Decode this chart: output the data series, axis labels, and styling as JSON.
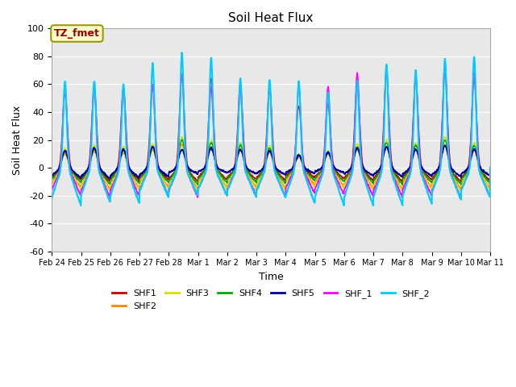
{
  "title": "Soil Heat Flux",
  "ylabel": "Soil Heat Flux",
  "xlabel": "Time",
  "ylim": [
    -60,
    100
  ],
  "series_names": [
    "SHF1",
    "SHF2",
    "SHF3",
    "SHF4",
    "SHF5",
    "SHF_1",
    "SHF_2"
  ],
  "series_colors": [
    "#cc0000",
    "#ff8800",
    "#dddd00",
    "#00aa00",
    "#000099",
    "#ff00ff",
    "#00ccff"
  ],
  "series_lw": [
    1.0,
    1.0,
    1.0,
    1.0,
    1.2,
    1.2,
    1.5
  ],
  "annotation_text": "TZ_fmet",
  "annotation_bg": "#ffffcc",
  "annotation_border": "#999900",
  "annotation_text_color": "#990000",
  "bg_color": "#e8e8e8",
  "n_days": 15,
  "ppd": 144,
  "x_tick_labels": [
    "Feb 24",
    "Feb 25",
    "Feb 26",
    "Feb 27",
    "Feb 28",
    "Mar 1",
    "Mar 2",
    "Mar 3",
    "Mar 4",
    "Mar 5",
    "Mar 6",
    "Mar 7",
    "Mar 8",
    "Mar 9",
    "Mar 10",
    "Mar 11"
  ],
  "peak_times": [
    0.45,
    0.45,
    0.45,
    0.45,
    0.45,
    0.45,
    0.45
  ],
  "peak_width": [
    0.08,
    0.1,
    0.1,
    0.1,
    0.1,
    0.07,
    0.06
  ],
  "day_peaks_shf1": [
    55,
    58,
    57,
    60,
    67,
    64,
    60,
    58,
    44,
    46,
    62,
    68,
    65,
    70,
    65
  ],
  "day_peaks_shf2": [
    10,
    12,
    11,
    13,
    17,
    15,
    13,
    11,
    8,
    10,
    13,
    15,
    13,
    16,
    13
  ],
  "day_peaks_shf3": [
    14,
    16,
    15,
    17,
    22,
    20,
    18,
    16,
    10,
    12,
    17,
    20,
    18,
    22,
    18
  ],
  "day_peaks_shf4": [
    12,
    14,
    13,
    15,
    20,
    18,
    16,
    14,
    9,
    11,
    15,
    18,
    16,
    20,
    16
  ],
  "day_peaks_shf5": [
    12,
    14,
    13,
    15,
    13,
    14,
    13,
    12,
    9,
    11,
    14,
    15,
    13,
    16,
    13
  ],
  "day_peaks_shf_1": [
    55,
    58,
    57,
    60,
    67,
    58,
    57,
    58,
    58,
    58,
    68,
    71,
    65,
    75,
    68
  ],
  "day_peaks_shf_2": [
    62,
    62,
    60,
    75,
    82,
    79,
    64,
    63,
    62,
    54,
    62,
    74,
    70,
    78,
    80
  ],
  "night_troughs_shf1": [
    -12,
    -14,
    -13,
    -12,
    -14,
    -12,
    -12,
    -13,
    -10,
    -11,
    -13,
    -14,
    -12,
    -14,
    -13
  ],
  "night_troughs_shf2": [
    -20,
    -22,
    -21,
    -20,
    -22,
    -20,
    -20,
    -21,
    -18,
    -19,
    -21,
    -22,
    -20,
    -22,
    -21
  ],
  "night_troughs_shf3": [
    -22,
    -24,
    -23,
    -22,
    -24,
    -22,
    -22,
    -23,
    -20,
    -21,
    -23,
    -24,
    -22,
    -24,
    -23
  ],
  "night_troughs_shf4": [
    -15,
    -17,
    -16,
    -15,
    -17,
    -15,
    -15,
    -16,
    -13,
    -14,
    -16,
    -17,
    -15,
    -17,
    -16
  ],
  "night_troughs_shf5": [
    -10,
    -11,
    -10,
    -9,
    -6,
    -5,
    -6,
    -7,
    -6,
    -5,
    -8,
    -9,
    -8,
    -9,
    -8
  ],
  "night_troughs_shf_1": [
    -28,
    -30,
    -29,
    -28,
    -30,
    -28,
    -28,
    -29,
    -26,
    -27,
    -29,
    -30,
    -28,
    -30,
    -29
  ],
  "night_troughs_shf_2": [
    -38,
    -35,
    -36,
    -30,
    -28,
    -28,
    -30,
    -30,
    -36,
    -38,
    -38,
    -38,
    -36,
    -32,
    -30
  ]
}
